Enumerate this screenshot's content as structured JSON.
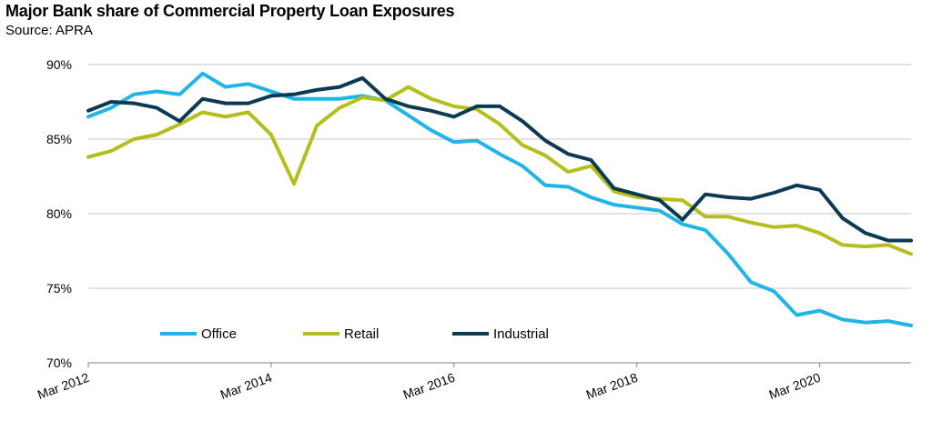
{
  "chart_data": {
    "type": "line",
    "title": "Major Bank share of Commercial Property Loan Exposures",
    "subtitle": "Source: APRA",
    "xlabel": "",
    "ylabel": "",
    "ylim": [
      70,
      90
    ],
    "yticks": [
      "90%",
      "85%",
      "80%",
      "75%",
      "70%"
    ],
    "ytick_values": [
      90,
      85,
      80,
      75,
      70
    ],
    "xticks": [
      "Mar 2012",
      "Mar 2014",
      "Mar 2016",
      "Mar 2018",
      "Mar 2020"
    ],
    "grid": true,
    "legend_position": "bottom-left",
    "x": [
      "Mar 2012",
      "Jun 2012",
      "Sep 2012",
      "Dec 2012",
      "Mar 2013",
      "Jun 2013",
      "Sep 2013",
      "Dec 2013",
      "Mar 2014",
      "Jun 2014",
      "Sep 2014",
      "Dec 2014",
      "Mar 2015",
      "Jun 2015",
      "Sep 2015",
      "Dec 2015",
      "Mar 2016",
      "Jun 2016",
      "Sep 2016",
      "Dec 2016",
      "Mar 2017",
      "Jun 2017",
      "Sep 2017",
      "Dec 2017",
      "Mar 2018",
      "Jun 2018",
      "Sep 2018",
      "Dec 2018",
      "Mar 2019",
      "Jun 2019",
      "Sep 2019",
      "Dec 2019",
      "Mar 2020",
      "Jun 2020",
      "Sep 2020",
      "Dec 2020",
      "Mar 2021"
    ],
    "series": [
      {
        "name": "Office",
        "color": "#1fb5e6",
        "values": [
          86.5,
          87.1,
          88.0,
          88.2,
          88.0,
          89.4,
          88.5,
          88.7,
          88.2,
          87.7,
          87.7,
          87.7,
          87.9,
          87.6,
          86.6,
          85.6,
          84.8,
          84.9,
          84.0,
          83.2,
          81.9,
          81.8,
          81.1,
          80.6,
          80.4,
          80.2,
          79.3,
          78.9,
          77.3,
          75.4,
          74.8,
          73.2,
          73.5,
          72.9,
          72.7,
          72.8,
          72.5
        ]
      },
      {
        "name": "Retail",
        "color": "#b4be1c",
        "values": [
          83.8,
          84.2,
          85.0,
          85.3,
          86.0,
          86.8,
          86.5,
          86.8,
          85.3,
          82.0,
          85.9,
          87.1,
          87.8,
          87.6,
          88.5,
          87.7,
          87.2,
          87.0,
          86.0,
          84.6,
          83.9,
          82.8,
          83.2,
          81.5,
          81.1,
          81.0,
          80.9,
          79.8,
          79.8,
          79.4,
          79.1,
          79.2,
          78.7,
          77.9,
          77.8,
          77.9,
          77.3
        ]
      },
      {
        "name": "Industrial",
        "color": "#0d3a53",
        "values": [
          86.9,
          87.5,
          87.4,
          87.1,
          86.2,
          87.7,
          87.4,
          87.4,
          87.9,
          88.0,
          88.3,
          88.5,
          89.1,
          87.7,
          87.2,
          86.9,
          86.5,
          87.2,
          87.2,
          86.2,
          84.9,
          84.0,
          83.6,
          81.7,
          81.3,
          80.9,
          79.6,
          81.3,
          81.1,
          81.0,
          81.4,
          81.9,
          81.6,
          79.7,
          78.7,
          78.2,
          78.2
        ]
      }
    ]
  }
}
